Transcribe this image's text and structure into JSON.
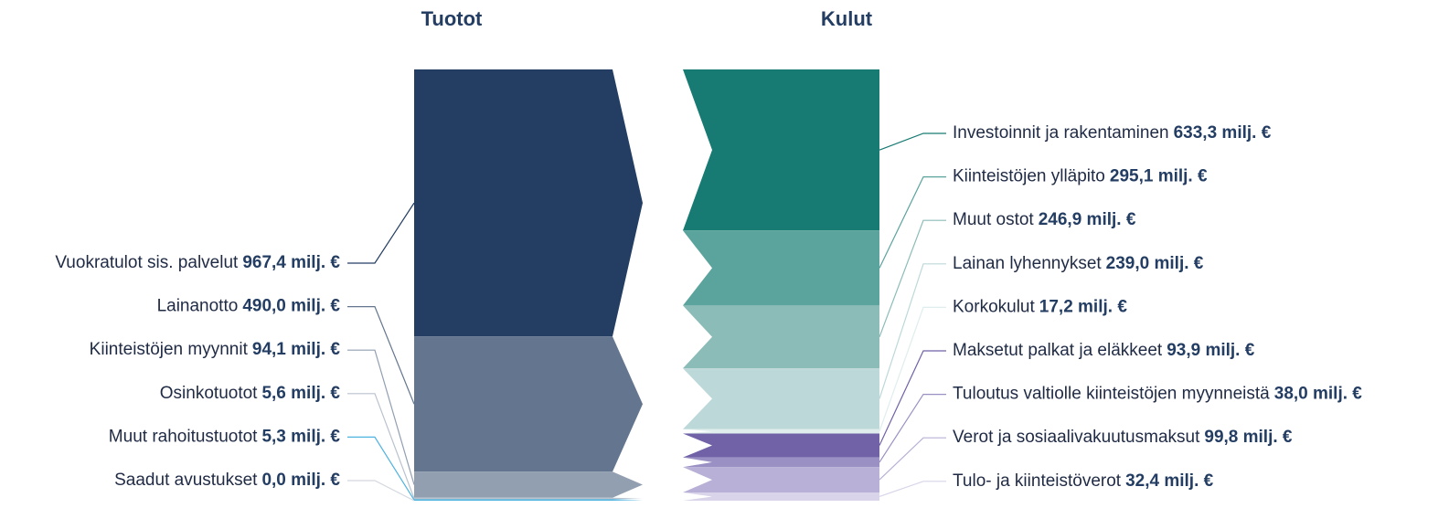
{
  "chart_data": [
    {
      "type": "stack",
      "title": "Tuotot",
      "categories": [
        "Vuokratulot sis. palvelut",
        "Lainanotto",
        "Kiinteistöjen myynnit",
        "Osinkotuotot",
        "Muut rahoitustuotot",
        "Saadut avustukset"
      ],
      "values": [
        967.4,
        490.0,
        94.1,
        5.6,
        5.3,
        0.0
      ],
      "value_labels": [
        "967,4 milj. €",
        "490,0 milj. €",
        "94,1 milj. €",
        "5,6 milj. €",
        "5,3 milj. €",
        "0,0 milj. €"
      ],
      "colors": [
        "#233d63",
        "#64768f",
        "#919fb1",
        "#b9c2cd",
        "#4fb3e0",
        "#d3d8df"
      ]
    },
    {
      "type": "stack",
      "title": "Kulut",
      "categories": [
        "Investoinnit ja rakentaminen",
        "Kiinteistöjen ylläpito",
        "Muut ostot",
        "Lainan lyhennykset",
        "Korkokulut",
        "Maksetut palkat ja eläkkeet",
        "Tuloutus valtiolle kiinteistöjen myynneistä",
        "Verot ja sosiaalivakuutusmaksut",
        "Tulo- ja kiinteistöverot"
      ],
      "values": [
        633.3,
        295.1,
        246.9,
        239.0,
        17.2,
        93.9,
        38.0,
        99.8,
        32.4
      ],
      "value_labels": [
        "633,3 milj. €",
        "295,1 milj. €",
        "246,9 milj. €",
        "239,0 milj. €",
        "17,2 milj. €",
        "93,9 milj. €",
        "38,0 milj. €",
        "99,8 milj. €",
        "32,4 milj. €"
      ],
      "colors": [
        "#177a73",
        "#5ba39d",
        "#8bbcb7",
        "#bdd8d8",
        "#e0eded",
        "#7162a8",
        "#9b90c3",
        "#b8b0d6",
        "#d9d4e9"
      ]
    }
  ]
}
